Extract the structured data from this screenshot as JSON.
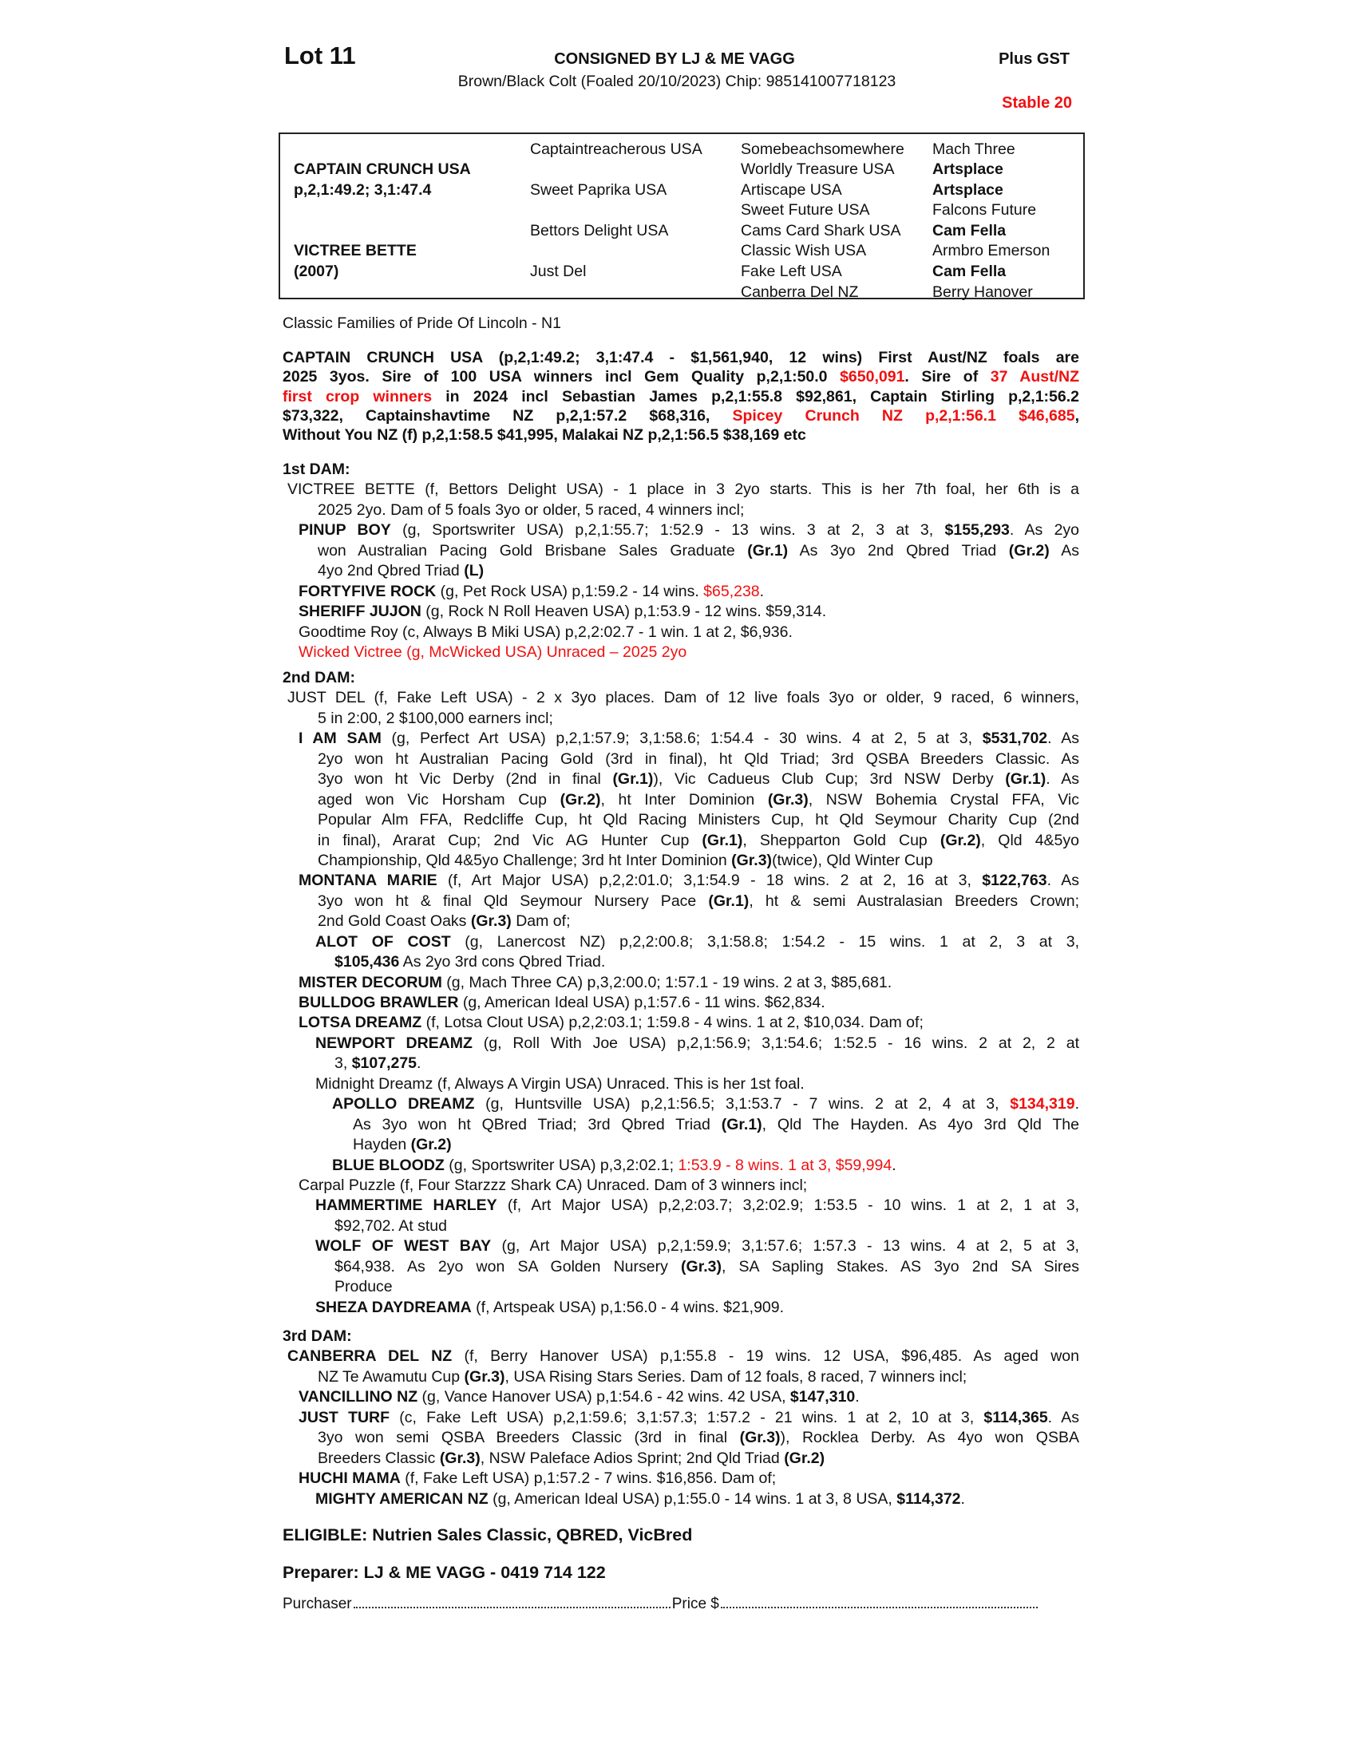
{
  "header": {
    "lot": "Lot 11",
    "consigned": "CONSIGNED BY LJ & ME VAGG",
    "plus_gst": "Plus GST",
    "description": "Brown/Black Colt (Foaled 20/10/2023) Chip: 985141007718123",
    "stable": "Stable 20"
  },
  "colors": {
    "accent_red": "#f01010",
    "text": "#111111"
  },
  "pedigree": {
    "sire": {
      "name": "CAPTAIN CRUNCH USA",
      "record": "p,2,1:49.2; 3,1:47.4"
    },
    "dam": {
      "name": "VICTREE BETTE",
      "year": "(2007)"
    },
    "gen2": [
      "Captaintreacherous USA",
      "Sweet Paprika USA",
      "Bettors Delight USA",
      "Just Del"
    ],
    "gen3": [
      "Somebeachsomewhere",
      "Worldly Treasure USA",
      "Artiscape USA",
      "Sweet Future USA",
      "Cams Card Shark USA",
      "Classic Wish USA",
      "Fake Left USA",
      "Canberra Del NZ"
    ],
    "gen4": [
      {
        "name": "Mach Three",
        "bold": false
      },
      {
        "name": "Artsplace",
        "bold": true
      },
      {
        "name": "Artsplace",
        "bold": true
      },
      {
        "name": "Falcons Future",
        "bold": false
      },
      {
        "name": "Cam Fella",
        "bold": true
      },
      {
        "name": "Armbro Emerson",
        "bold": false
      },
      {
        "name": "Cam Fella",
        "bold": true
      },
      {
        "name": "Berry Hanover",
        "bold": false
      }
    ]
  },
  "family": "Classic Families of Pride Of Lincoln - N1",
  "sire_summary": [
    [
      [
        "CAPTAIN CRUNCH USA (p,2,1:49.2; 3,1:47.4 - $1,561,940, 12 wins) First Aust/NZ foals are",
        "b"
      ]
    ],
    [
      [
        "2025 3yos. Sire of 100 USA winners incl Gem Quality p,2,1:50.0 ",
        "b"
      ],
      [
        "$650,091",
        "br"
      ],
      [
        ". Sire of ",
        "b"
      ],
      [
        "37 Aust/NZ",
        "br"
      ]
    ],
    [
      [
        "first crop winners",
        "br"
      ],
      [
        " in 2024 incl Sebastian James p,2,1:55.8 $92,861, Captain Stirling p,2,1:56.2",
        "b"
      ]
    ],
    [
      [
        "$73,322, Captainshavtime NZ p,2,1:57.2 $68,316, ",
        "b"
      ],
      [
        "Spicey Crunch NZ p,2,1:56.1 $46,685",
        "br"
      ],
      [
        ",",
        "b"
      ]
    ],
    [
      [
        "Without You NZ (f) p,2,1:58.5 $41,995, Malakai NZ p,2,1:56.5 $38,169 etc",
        "b"
      ]
    ]
  ],
  "sections": [
    {
      "heading": "1st DAM:",
      "entries": [
        {
          "depth": 0,
          "lines": [
            [
              [
                "VICTREE BETTE (f, Bettors Delight USA) - 1 place in 3 2yo starts. This is her 7th foal, her 6th is a",
                ""
              ]
            ],
            [
              [
                "2025 2yo. Dam of 5 foals 3yo or older, 5 raced, 4 winners incl;",
                ""
              ]
            ]
          ]
        },
        {
          "depth": 1,
          "lines": [
            [
              [
                "PINUP BOY",
                "b"
              ],
              [
                " (g, Sportswriter USA) p,2,1:55.7; 1:52.9 - 13 wins. 3 at 2, 3 at 3, ",
                ""
              ],
              [
                "$155,293",
                "b"
              ],
              [
                ". As 2yo",
                ""
              ]
            ],
            [
              [
                "won Australian Pacing Gold Brisbane Sales Graduate ",
                ""
              ],
              [
                "(Gr.1)",
                "b"
              ],
              [
                " As 3yo 2nd Qbred Triad ",
                ""
              ],
              [
                "(Gr.2)",
                "b"
              ],
              [
                " As",
                ""
              ]
            ],
            [
              [
                "4yo 2nd Qbred Triad ",
                ""
              ],
              [
                "(L)",
                "b"
              ]
            ]
          ]
        },
        {
          "depth": 1,
          "lines": [
            [
              [
                "FORTYFIVE ROCK",
                "b"
              ],
              [
                " (g, Pet Rock USA) p,1:59.2 - 14 wins. ",
                ""
              ],
              [
                "$65,238",
                "r"
              ],
              [
                ".",
                ""
              ]
            ]
          ]
        },
        {
          "depth": 1,
          "lines": [
            [
              [
                "SHERIFF JUJON",
                "b"
              ],
              [
                " (g, Rock N Roll Heaven USA) p,1:53.9 - 12 wins. $59,314.",
                ""
              ]
            ]
          ]
        },
        {
          "depth": 1,
          "lines": [
            [
              [
                "Goodtime Roy (c, Always B Miki USA) p,2,2:02.7 - 1 win. 1 at 2, $6,936.",
                ""
              ]
            ]
          ]
        },
        {
          "depth": 1,
          "lines": [
            [
              [
                "Wicked Victree (g, McWicked USA) Unraced – 2025 2yo",
                "r"
              ]
            ]
          ]
        }
      ]
    },
    {
      "heading": "2nd DAM:",
      "entries": [
        {
          "depth": 0,
          "lines": [
            [
              [
                "JUST DEL (f, Fake Left USA) - 2 x 3yo places. Dam of 12 live foals 3yo or older, 9 raced, 6 winners,",
                ""
              ]
            ],
            [
              [
                "5 in 2:00, 2 $100,000 earners incl;",
                ""
              ]
            ]
          ]
        },
        {
          "depth": 1,
          "lines": [
            [
              [
                "I AM SAM",
                "b"
              ],
              [
                " (g, Perfect Art USA) p,2,1:57.9; 3,1:58.6; 1:54.4 - 30 wins. 4 at 2, 5 at 3, ",
                ""
              ],
              [
                "$531,702",
                "b"
              ],
              [
                ". As",
                ""
              ]
            ],
            [
              [
                "2yo won ht Australian Pacing Gold (3rd in final), ht Qld Triad; 3rd QSBA Breeders Classic. As",
                ""
              ]
            ],
            [
              [
                "3yo won ht Vic Derby (2nd in final ",
                ""
              ],
              [
                "(Gr.1)",
                "b"
              ],
              [
                "), Vic Cadueus Club Cup; 3rd NSW Derby ",
                ""
              ],
              [
                "(Gr.1)",
                "b"
              ],
              [
                ". As",
                ""
              ]
            ],
            [
              [
                "aged won Vic Horsham Cup ",
                ""
              ],
              [
                "(Gr.2)",
                "b"
              ],
              [
                ", ht Inter Dominion ",
                ""
              ],
              [
                "(Gr.3)",
                "b"
              ],
              [
                ", NSW Bohemia Crystal FFA, Vic",
                ""
              ]
            ],
            [
              [
                "Popular Alm FFA, Redcliffe Cup, ht Qld Racing Ministers Cup, ht Qld Seymour Charity Cup (2nd",
                ""
              ]
            ],
            [
              [
                "in final), Ararat Cup; 2nd Vic AG Hunter Cup ",
                ""
              ],
              [
                "(Gr.1)",
                "b"
              ],
              [
                ", Shepparton Gold Cup ",
                ""
              ],
              [
                "(Gr.2)",
                "b"
              ],
              [
                ", Qld 4&5yo",
                ""
              ]
            ],
            [
              [
                "Championship, Qld 4&5yo Challenge; 3rd ht Inter Dominion ",
                ""
              ],
              [
                "(Gr.3)",
                "b"
              ],
              [
                "(twice), Qld Winter Cup",
                ""
              ]
            ]
          ]
        },
        {
          "depth": 1,
          "lines": [
            [
              [
                "MONTANA MARIE",
                "b"
              ],
              [
                " (f, Art Major USA) p,2,2:01.0; 3,1:54.9 - 18 wins. 2 at 2, 16 at 3, ",
                ""
              ],
              [
                "$122,763",
                "b"
              ],
              [
                ". As",
                ""
              ]
            ],
            [
              [
                "3yo won ht & final Qld Seymour Nursery Pace ",
                ""
              ],
              [
                "(Gr.1)",
                "b"
              ],
              [
                ", ht & semi Australasian Breeders Crown;",
                ""
              ]
            ],
            [
              [
                "2nd Gold Coast Oaks ",
                ""
              ],
              [
                "(Gr.3)",
                "b"
              ],
              [
                " Dam of;",
                ""
              ]
            ]
          ]
        },
        {
          "depth": 2,
          "lines": [
            [
              [
                "ALOT OF COST",
                "b"
              ],
              [
                " (g, Lanercost NZ) p,2,2:00.8; 3,1:58.8; 1:54.2 - 15 wins. 1 at 2, 3 at 3,",
                ""
              ]
            ],
            [
              [
                "$105,436",
                "b"
              ],
              [
                " As 2yo 3rd cons Qbred Triad.",
                ""
              ]
            ]
          ]
        },
        {
          "depth": 1,
          "lines": [
            [
              [
                "MISTER DECORUM",
                "b"
              ],
              [
                " (g, Mach Three CA) p,3,2:00.0; 1:57.1 - 19 wins. 2 at 3, $85,681.",
                ""
              ]
            ]
          ]
        },
        {
          "depth": 1,
          "lines": [
            [
              [
                "BULLDOG BRAWLER",
                "b"
              ],
              [
                " (g, American Ideal USA) p,1:57.6 - 11 wins. $62,834.",
                ""
              ]
            ]
          ]
        },
        {
          "depth": 1,
          "lines": [
            [
              [
                "LOTSA DREAMZ",
                "b"
              ],
              [
                " (f, Lotsa Clout USA) p,2,2:03.1; 1:59.8 - 4 wins. 1 at 2, $10,034. Dam of;",
                ""
              ]
            ]
          ]
        },
        {
          "depth": 2,
          "lines": [
            [
              [
                "NEWPORT DREAMZ",
                "b"
              ],
              [
                " (g, Roll With Joe USA) p,2,1:56.9; 3,1:54.6; 1:52.5 - 16 wins. 2 at 2, 2 at",
                ""
              ]
            ],
            [
              [
                "3, ",
                ""
              ],
              [
                "$107,275",
                "b"
              ],
              [
                ".",
                ""
              ]
            ]
          ]
        },
        {
          "depth": 2,
          "lines": [
            [
              [
                "Midnight Dreamz (f, Always A Virgin USA) Unraced. This is her 1st foal.",
                ""
              ]
            ]
          ]
        },
        {
          "depth": 3,
          "lines": [
            [
              [
                "APOLLO DREAMZ",
                "b"
              ],
              [
                " (g, Huntsville USA) p,2,1:56.5; 3,1:53.7 - 7 wins. 2 at 2, 4 at 3, ",
                ""
              ],
              [
                "$134,319",
                "br"
              ],
              [
                ".",
                ""
              ]
            ],
            [
              [
                "As 3yo won ht QBred Triad; 3rd Qbred Triad ",
                ""
              ],
              [
                "(Gr.1)",
                "b"
              ],
              [
                ", Qld The Hayden. As 4yo 3rd Qld The",
                ""
              ]
            ],
            [
              [
                "Hayden ",
                ""
              ],
              [
                "(Gr.2)",
                "b"
              ]
            ]
          ]
        },
        {
          "depth": 3,
          "lines": [
            [
              [
                "BLUE BLOODZ",
                "b"
              ],
              [
                " (g, Sportswriter USA) p,3,2:02.1; ",
                ""
              ],
              [
                "1:53.9 - 8 wins. 1 at 3, $59,994",
                "r"
              ],
              [
                ".",
                ""
              ]
            ]
          ]
        },
        {
          "depth": 1,
          "lines": [
            [
              [
                "Carpal Puzzle (f, Four Starzzz Shark CA) Unraced. Dam of 3 winners incl;",
                ""
              ]
            ]
          ]
        },
        {
          "depth": 2,
          "lines": [
            [
              [
                "HAMMERTIME HARLEY",
                "b"
              ],
              [
                " (f, Art Major USA) p,2,2:03.7; 3,2:02.9; 1:53.5 - 10 wins. 1 at 2, 1 at 3,",
                ""
              ]
            ],
            [
              [
                "$92,702. At stud",
                ""
              ]
            ]
          ]
        },
        {
          "depth": 2,
          "lines": [
            [
              [
                "WOLF OF WEST BAY",
                "b"
              ],
              [
                " (g, Art Major USA) p,2,1:59.9; 3,1:57.6; 1:57.3 - 13 wins. 4 at 2, 5 at 3,",
                ""
              ]
            ],
            [
              [
                "$64,938. As 2yo won SA Golden Nursery ",
                ""
              ],
              [
                "(Gr.3)",
                "b"
              ],
              [
                ", SA Sapling Stakes. AS 3yo 2nd SA Sires",
                ""
              ]
            ],
            [
              [
                "Produce",
                ""
              ]
            ]
          ]
        },
        {
          "depth": 2,
          "lines": [
            [
              [
                "SHEZA DAYDREAMA",
                "b"
              ],
              [
                " (f, Artspeak USA) p,1:56.0 - 4 wins. $21,909.",
                ""
              ]
            ]
          ]
        }
      ]
    },
    {
      "heading": "3rd DAM:",
      "entries": [
        {
          "depth": 0,
          "lines": [
            [
              [
                "CANBERRA DEL NZ",
                "b"
              ],
              [
                " (f, Berry Hanover USA) p,1:55.8 - 19 wins. 12 USA, $96,485. As aged won",
                ""
              ]
            ],
            [
              [
                "NZ Te Awamutu Cup ",
                ""
              ],
              [
                "(Gr.3)",
                "b"
              ],
              [
                ", USA Rising Stars Series. Dam of 12 foals, 8 raced, 7 winners incl;",
                ""
              ]
            ]
          ]
        },
        {
          "depth": 1,
          "lines": [
            [
              [
                "VANCILLINO NZ",
                "b"
              ],
              [
                " (g, Vance Hanover USA) p,1:54.6 - 42 wins. 42 USA, ",
                ""
              ],
              [
                "$147,310",
                "b"
              ],
              [
                ".",
                ""
              ]
            ]
          ]
        },
        {
          "depth": 1,
          "lines": [
            [
              [
                "JUST TURF",
                "b"
              ],
              [
                " (c, Fake Left USA) p,2,1:59.6; 3,1:57.3; 1:57.2 - 21 wins. 1 at 2, 10 at 3, ",
                ""
              ],
              [
                "$114,365",
                "b"
              ],
              [
                ". As",
                ""
              ]
            ],
            [
              [
                "3yo won semi QSBA Breeders Classic (3rd in final ",
                ""
              ],
              [
                "(Gr.3)",
                "b"
              ],
              [
                "), Rocklea Derby. As 4yo won QSBA",
                ""
              ]
            ],
            [
              [
                "Breeders Classic ",
                ""
              ],
              [
                "(Gr.3)",
                "b"
              ],
              [
                ", NSW Paleface Adios Sprint; 2nd Qld Triad ",
                ""
              ],
              [
                "(Gr.2)",
                "b"
              ]
            ]
          ]
        },
        {
          "depth": 1,
          "lines": [
            [
              [
                "HUCHI MAMA",
                "b"
              ],
              [
                " (f, Fake Left USA) p,1:57.2 - 7 wins. $16,856. Dam of;",
                ""
              ]
            ]
          ]
        },
        {
          "depth": 2,
          "lines": [
            [
              [
                "MIGHTY AMERICAN NZ",
                "b"
              ],
              [
                " (g, American Ideal USA) p,1:55.0 - 14 wins. 1 at 3, 8 USA, ",
                ""
              ],
              [
                "$114,372",
                "b"
              ],
              [
                ".",
                ""
              ]
            ]
          ]
        }
      ]
    }
  ],
  "footer": {
    "eligible": "ELIGIBLE: Nutrien Sales Classic, QBRED, VicBred",
    "preparer": "Preparer: LJ & ME VAGG - 0419 714 122",
    "purchaser_label": "Purchaser",
    "price_label": "Price $"
  }
}
